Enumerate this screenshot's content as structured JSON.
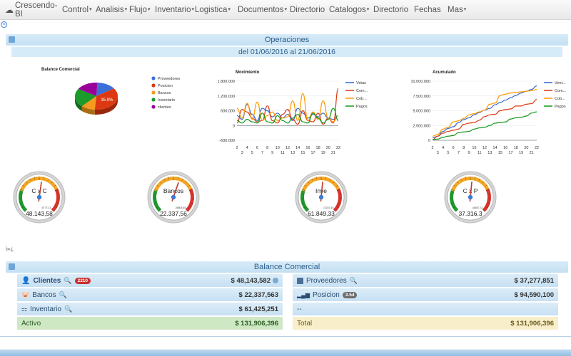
{
  "nav": {
    "brand": "Crescendo-BI",
    "items": [
      {
        "label": "Control",
        "caret": true
      },
      {
        "label": "Analisis",
        "caret": true
      },
      {
        "label": "Flujo",
        "caret": true
      },
      {
        "label": "Inventario",
        "caret": true
      },
      {
        "label": "Logistica",
        "caret": true
      },
      {
        "label": "Documentos",
        "caret": true
      },
      {
        "label": "Directorio",
        "caret": false
      },
      {
        "label": "Catalogos",
        "caret": true
      },
      {
        "label": "Directorio",
        "caret": false
      },
      {
        "label": "Fechas",
        "caret": false
      },
      {
        "label": "Mas",
        "caret": true
      }
    ]
  },
  "operaciones": {
    "title": "Operaciones",
    "range": "del 01/06/2016 al 21/06/2016"
  },
  "chart_data": [
    {
      "type": "pie",
      "title": "Balance Comercial",
      "categories": [
        "Proveedores",
        "Posicion",
        "Bancos",
        "Inventario",
        "clientes"
      ],
      "values": [
        14.5,
        35.9,
        10.5,
        22.3,
        16.8
      ],
      "colors": [
        "#3a6fd8",
        "#dc3912",
        "#f59a1f",
        "#1c9a2a",
        "#990099"
      ],
      "data_labels": [
        "",
        "35.9%",
        "",
        "",
        ""
      ],
      "legend": "right"
    },
    {
      "type": "line",
      "title": "Movimiento",
      "x": [
        2,
        3,
        4,
        5,
        6,
        7,
        8,
        9,
        10,
        11,
        12,
        13,
        14,
        15,
        16,
        17,
        18,
        19,
        20,
        21,
        22
      ],
      "x_ticks_top": [
        "2",
        "4",
        "6",
        "8",
        "10",
        "12",
        "14",
        "16",
        "18",
        "20",
        "22"
      ],
      "x_ticks_bottom": [
        "3",
        "5",
        "7",
        "9",
        "11",
        "13",
        "15",
        "17",
        "19",
        "21"
      ],
      "y_ticks": [
        "1.800.000",
        "1.200.000",
        "600.000",
        "0",
        "-600.000"
      ],
      "ylim": [
        -600000,
        1800000
      ],
      "series": [
        {
          "name": "Vetas",
          "color": "#3366cc",
          "values": [
            400000,
            250000,
            850000,
            450000,
            200000,
            700000,
            600000,
            350000,
            500000,
            300000,
            450000,
            200000,
            700000,
            500000,
            300000,
            450000,
            350000,
            500000,
            300000,
            250000,
            400000
          ]
        },
        {
          "name": "Com...",
          "color": "#dc3912",
          "values": [
            100000,
            650000,
            550000,
            300000,
            150000,
            200000,
            800000,
            200000,
            100000,
            450000,
            650000,
            250000,
            50000,
            600000,
            200000,
            150000,
            500000,
            50000,
            300000,
            100000,
            1500000
          ]
        },
        {
          "name": "Cob...",
          "color": "#ff9900",
          "values": [
            700000,
            300000,
            900000,
            250000,
            950000,
            200000,
            400000,
            550000,
            200000,
            300000,
            350000,
            1000000,
            200000,
            1300000,
            200000,
            550000,
            250000,
            1000000,
            300000,
            150000,
            400000
          ]
        },
        {
          "name": "Pagos",
          "color": "#109618",
          "values": [
            200000,
            100000,
            250000,
            150000,
            100000,
            500000,
            150000,
            100000,
            400000,
            200000,
            100000,
            300000,
            450000,
            150000,
            100000,
            500000,
            300000,
            100000,
            250000,
            700000,
            200000
          ]
        }
      ]
    },
    {
      "type": "line",
      "title": "Acumulado",
      "x": [
        2,
        3,
        4,
        5,
        6,
        7,
        8,
        9,
        10,
        11,
        12,
        13,
        14,
        15,
        16,
        17,
        18,
        19,
        20,
        21,
        22
      ],
      "x_ticks_top": [
        "2",
        "4",
        "6",
        "8",
        "10",
        "12",
        "14",
        "16",
        "18",
        "20",
        "22"
      ],
      "x_ticks_bottom": [
        "3",
        "5",
        "7",
        "9",
        "11",
        "13",
        "15",
        "17",
        "19",
        "21"
      ],
      "y_ticks": [
        "10.000.000",
        "7.500.000",
        "5.000.000",
        "2.500.000",
        "0"
      ],
      "ylim": [
        0,
        10000000
      ],
      "series": [
        {
          "name": "Vent...",
          "color": "#3366cc",
          "values": [
            400000,
            700000,
            1500000,
            2000000,
            2300000,
            3000000,
            3500000,
            3800000,
            4300000,
            4700000,
            5100000,
            5400000,
            6000000,
            6400000,
            6800000,
            7200000,
            7600000,
            8000000,
            8300000,
            8600000,
            9200000
          ]
        },
        {
          "name": "Com...",
          "color": "#dc3912",
          "values": [
            100000,
            700000,
            1200000,
            1500000,
            1700000,
            1900000,
            2700000,
            2900000,
            3000000,
            3400000,
            4000000,
            4300000,
            4400000,
            5000000,
            5200000,
            5300000,
            5800000,
            5800000,
            6100000,
            6200000,
            6900000
          ]
        },
        {
          "name": "Cob...",
          "color": "#ff9900",
          "values": [
            700000,
            1000000,
            1900000,
            2200000,
            3100000,
            3300000,
            3700000,
            4300000,
            4500000,
            4800000,
            5100000,
            6100000,
            6300000,
            7600000,
            7800000,
            8000000,
            8100000,
            8200000,
            8300000,
            8400000,
            8600000
          ]
        },
        {
          "name": "Pagos",
          "color": "#109618",
          "values": [
            100000,
            200000,
            500000,
            700000,
            800000,
            1300000,
            1400000,
            1500000,
            1900000,
            2100000,
            2200000,
            2500000,
            2900000,
            3000000,
            3100000,
            3600000,
            3800000,
            3900000,
            4100000,
            4600000,
            4800000
          ]
        }
      ]
    }
  ],
  "gauges": [
    {
      "label": "C x C",
      "value": "48.143,58",
      "small": "57772.3",
      "fraction": 0.53
    },
    {
      "label": "Bancos",
      "value": "22.337,56",
      "small": "26805.45",
      "fraction": 0.57
    },
    {
      "label": "Inve",
      "value": "61.849,33",
      "small": "74219.19",
      "fraction": 0.52
    },
    {
      "label": "C x P",
      "value": "37.316,3",
      "small": "44847.72",
      "fraction": 0.52
    }
  ],
  "lang_link": "i»¿",
  "balance": {
    "title": "Balance Comercial",
    "left": [
      {
        "label": "Clientes",
        "badge": "2210",
        "amount": "$ 48,143,582"
      },
      {
        "label": "Bancos",
        "amount": "$ 22,337,563"
      },
      {
        "label": "Inventario",
        "amount": "$ 61,425,251"
      }
    ],
    "right": [
      {
        "label": "Proveedores",
        "amount": "$ 37,277,851"
      },
      {
        "label": "Posicion",
        "badge": "3.54",
        "amount": "$ 94,590,100"
      },
      {
        "label": "--",
        "amount": ""
      }
    ],
    "activo_label": "Activo",
    "activo_amount": "$ 131,906,396",
    "total_label": "Total",
    "total_amount": "$ 131,906,396"
  }
}
